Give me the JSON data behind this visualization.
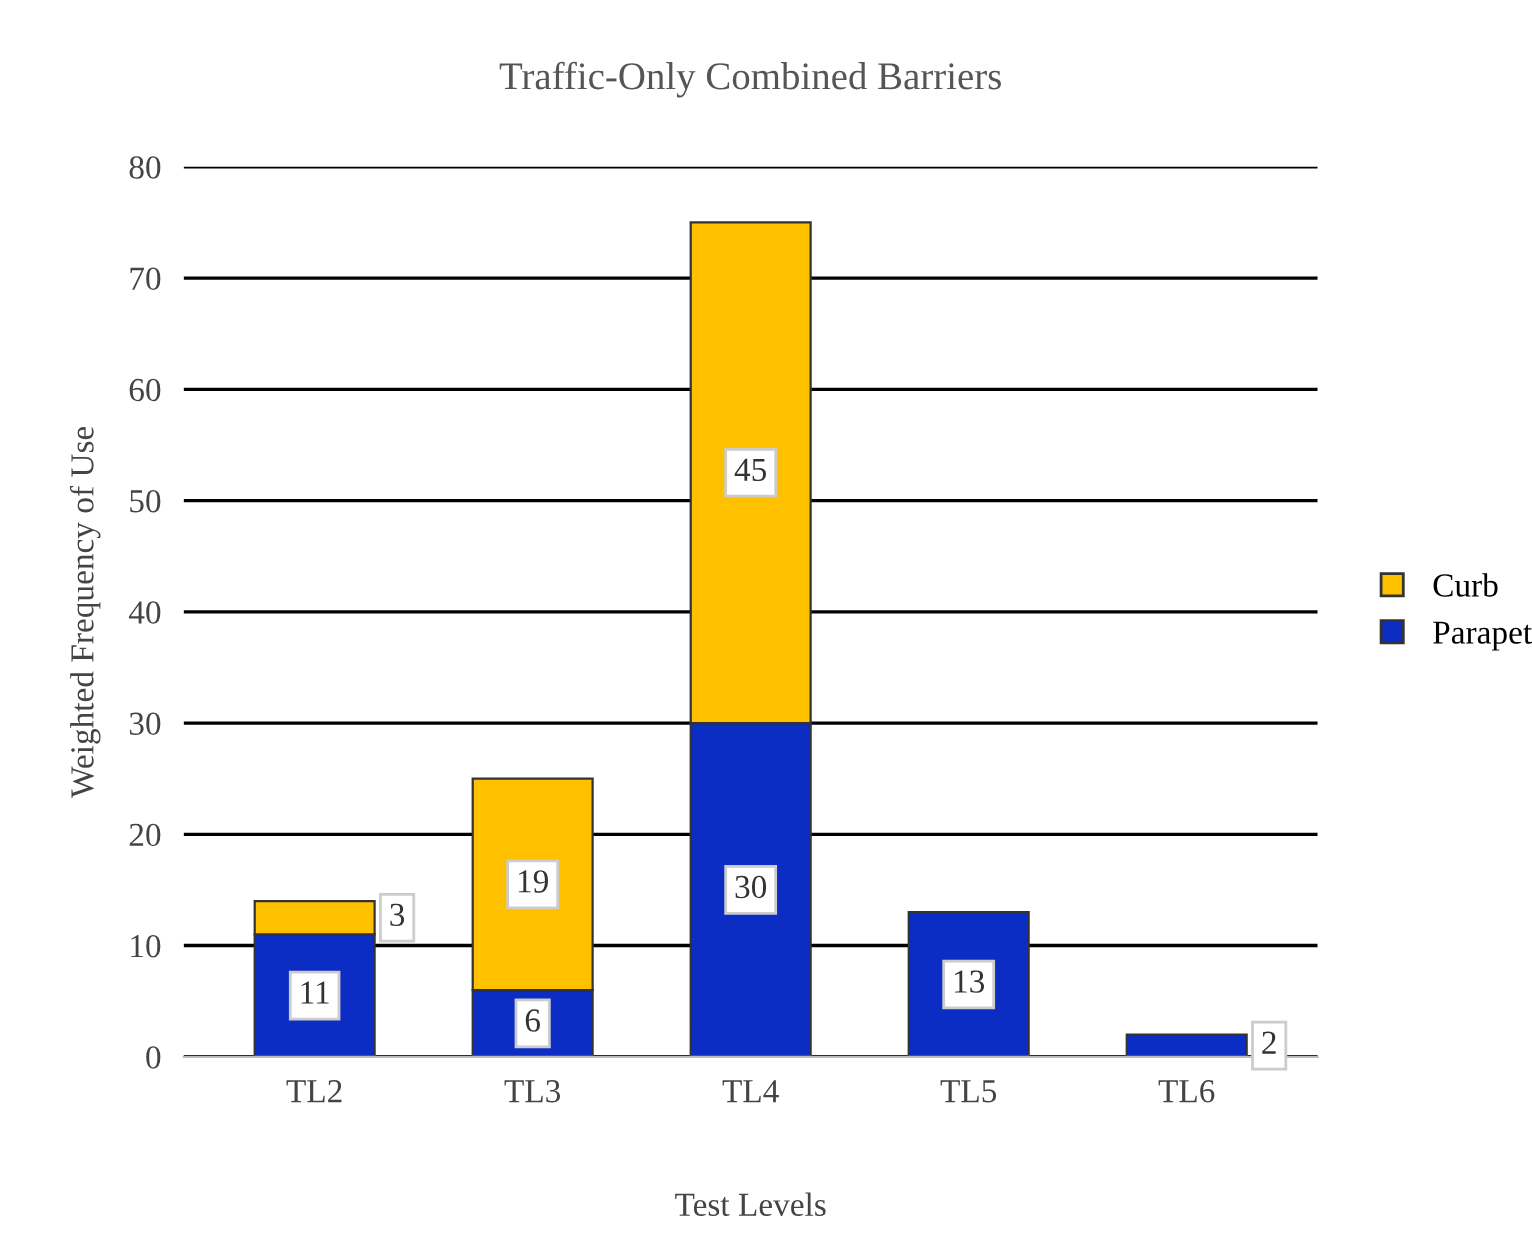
{
  "chart_data": {
    "type": "bar",
    "title": "Traffic-Only Combined Barriers",
    "xlabel": "Test Levels",
    "ylabel": "Weighted Frequency of Use",
    "categories": [
      "TL2",
      "TL3",
      "TL4",
      "TL5",
      "TL6"
    ],
    "series": [
      {
        "name": "Parapet",
        "color": "#0b2dc4",
        "values": [
          11,
          6,
          30,
          13,
          2
        ]
      },
      {
        "name": "Curb",
        "color": "#ffc000",
        "values": [
          3,
          19,
          45,
          null,
          null
        ]
      }
    ],
    "stacked": true,
    "ylim": [
      0,
      80
    ],
    "yticks": [
      0,
      10,
      20,
      30,
      40,
      50,
      60,
      70,
      80
    ],
    "grid": "y",
    "legend": "right",
    "data_labels": true
  }
}
